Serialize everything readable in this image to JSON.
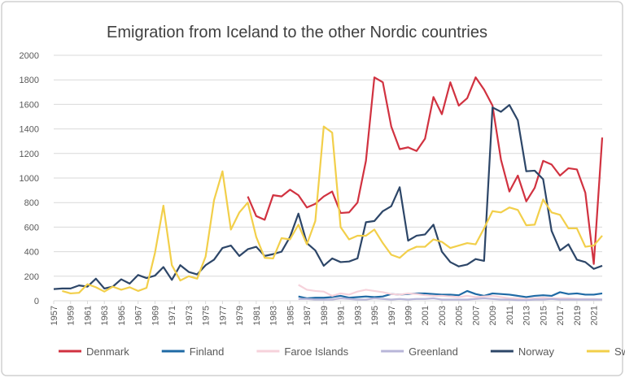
{
  "chart_data": {
    "type": "line",
    "title": "Emigration from Iceland to the other Nordic countries",
    "x": [
      1957,
      1958,
      1959,
      1960,
      1961,
      1962,
      1963,
      1964,
      1965,
      1966,
      1967,
      1968,
      1969,
      1970,
      1971,
      1972,
      1973,
      1974,
      1975,
      1976,
      1977,
      1978,
      1979,
      1980,
      1981,
      1982,
      1983,
      1984,
      1985,
      1986,
      1987,
      1988,
      1989,
      1990,
      1991,
      1992,
      1993,
      1994,
      1995,
      1996,
      1997,
      1998,
      1999,
      2000,
      2001,
      2002,
      2003,
      2004,
      2005,
      2006,
      2007,
      2008,
      2009,
      2010,
      2011,
      2012,
      2013,
      2014,
      2015,
      2016,
      2017,
      2018,
      2019,
      2020,
      2021,
      2022
    ],
    "xlim": [
      1957,
      2022
    ],
    "xticks": [
      1957,
      1959,
      1961,
      1963,
      1965,
      1967,
      1969,
      1971,
      1973,
      1975,
      1977,
      1979,
      1981,
      1983,
      1985,
      1987,
      1989,
      1991,
      1993,
      1995,
      1997,
      1999,
      2001,
      2003,
      2005,
      2007,
      2009,
      2011,
      2013,
      2015,
      2017,
      2019,
      2021
    ],
    "ylim": [
      0,
      2000
    ],
    "yticks": [
      0,
      200,
      400,
      600,
      800,
      1000,
      1200,
      1400,
      1600,
      1800,
      2000
    ],
    "grid": true,
    "legend": "bottom",
    "series": [
      {
        "name": "Denmark",
        "color": "#d13240",
        "values": [
          null,
          null,
          null,
          null,
          null,
          null,
          null,
          null,
          null,
          null,
          null,
          null,
          null,
          null,
          null,
          null,
          null,
          null,
          null,
          null,
          null,
          null,
          null,
          850,
          690,
          660,
          860,
          850,
          905,
          860,
          760,
          790,
          850,
          890,
          715,
          720,
          800,
          1140,
          1820,
          1780,
          1420,
          1235,
          1250,
          1220,
          1320,
          1660,
          1520,
          1780,
          1590,
          1650,
          1820,
          1720,
          1590,
          1150,
          890,
          1020,
          810,
          920,
          1140,
          1110,
          1020,
          1080,
          1070,
          880,
          300,
          1330
        ]
      },
      {
        "name": "Finland",
        "color": "#1f6aa5",
        "values": [
          null,
          null,
          null,
          null,
          null,
          null,
          null,
          null,
          null,
          null,
          null,
          null,
          null,
          null,
          null,
          null,
          null,
          null,
          null,
          null,
          null,
          null,
          null,
          null,
          null,
          null,
          null,
          null,
          null,
          35,
          20,
          25,
          25,
          30,
          40,
          25,
          30,
          35,
          30,
          35,
          55,
          50,
          55,
          60,
          60,
          55,
          50,
          50,
          45,
          80,
          55,
          40,
          60,
          55,
          50,
          40,
          30,
          40,
          45,
          40,
          70,
          55,
          60,
          50,
          50,
          60
        ]
      },
      {
        "name": "Faroe Islands",
        "color": "#f6d2db",
        "values": [
          null,
          null,
          null,
          null,
          null,
          null,
          null,
          null,
          null,
          null,
          null,
          null,
          null,
          null,
          null,
          null,
          null,
          null,
          null,
          null,
          null,
          null,
          null,
          null,
          null,
          null,
          null,
          null,
          null,
          130,
          90,
          80,
          75,
          40,
          60,
          50,
          75,
          90,
          80,
          70,
          55,
          50,
          60,
          55,
          45,
          40,
          40,
          35,
          30,
          40,
          30,
          35,
          40,
          30,
          20,
          20,
          15,
          20,
          25,
          20,
          20,
          20,
          15,
          15,
          15,
          10
        ]
      },
      {
        "name": "Greenland",
        "color": "#b8b6d9",
        "values": [
          null,
          null,
          null,
          null,
          null,
          null,
          null,
          null,
          null,
          null,
          null,
          null,
          null,
          null,
          null,
          null,
          null,
          null,
          null,
          null,
          null,
          null,
          null,
          null,
          null,
          null,
          null,
          null,
          null,
          15,
          15,
          10,
          10,
          10,
          20,
          15,
          10,
          10,
          20,
          15,
          10,
          15,
          10,
          15,
          15,
          20,
          10,
          10,
          10,
          10,
          15,
          20,
          15,
          10,
          10,
          5,
          5,
          10,
          10,
          15,
          10,
          10,
          10,
          10,
          10,
          10
        ]
      },
      {
        "name": "Norway",
        "color": "#2d4668",
        "values": [
          95,
          100,
          100,
          125,
          115,
          180,
          100,
          115,
          175,
          140,
          210,
          185,
          205,
          275,
          170,
          290,
          235,
          215,
          290,
          335,
          430,
          450,
          365,
          420,
          440,
          365,
          380,
          400,
          520,
          710,
          470,
          410,
          285,
          345,
          315,
          320,
          345,
          640,
          650,
          730,
          770,
          925,
          490,
          530,
          540,
          620,
          400,
          315,
          280,
          295,
          340,
          325,
          1575,
          1540,
          1595,
          1470,
          1055,
          1060,
          990,
          570,
          410,
          460,
          335,
          315,
          260,
          285
        ]
      },
      {
        "name": "Sweden",
        "color": "#f2cf4a",
        "values": [
          null,
          80,
          60,
          65,
          135,
          110,
          75,
          115,
          90,
          110,
          80,
          105,
          390,
          775,
          290,
          165,
          200,
          180,
          360,
          820,
          1055,
          580,
          720,
          800,
          520,
          350,
          345,
          510,
          500,
          620,
          460,
          650,
          1420,
          1370,
          600,
          500,
          530,
          530,
          580,
          470,
          375,
          350,
          410,
          440,
          440,
          500,
          480,
          430,
          450,
          470,
          460,
          590,
          730,
          720,
          760,
          740,
          615,
          620,
          825,
          720,
          700,
          590,
          590,
          440,
          450,
          530
        ]
      }
    ]
  }
}
